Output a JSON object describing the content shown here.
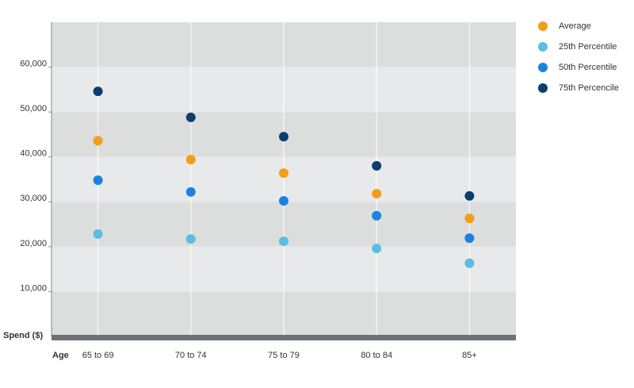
{
  "chart_data": {
    "type": "scatter",
    "y_label": "Spend ($)",
    "x_label": "Age",
    "categories": [
      "65 to 69",
      "70 to 74",
      "75 to 79",
      "80 to 84",
      "85+"
    ],
    "series": [
      {
        "name": "Average",
        "color": "#f59c1a",
        "values": [
          43600,
          39400,
          36400,
          31800,
          26300
        ]
      },
      {
        "name": "25th Percentile",
        "color": "#5bbde3",
        "values": [
          22800,
          21700,
          21200,
          19600,
          16300
        ]
      },
      {
        "name": "50th Percentile",
        "color": "#1a82e2",
        "values": [
          34800,
          32200,
          30200,
          26900,
          21900
        ]
      },
      {
        "name": "75th Percencile",
        "color": "#0b3d6e",
        "values": [
          54600,
          48800,
          44500,
          38000,
          31300
        ]
      }
    ],
    "ylim": [
      0,
      70000
    ],
    "yticks": [
      {
        "value": 10000,
        "label": "10,000"
      },
      {
        "value": 20000,
        "label": "20,000"
      },
      {
        "value": 30000,
        "label": "30,000"
      },
      {
        "value": 40000,
        "label": "40,000"
      },
      {
        "value": 50000,
        "label": "50,000"
      },
      {
        "value": 60000,
        "label": "60,000"
      }
    ],
    "legend": "right"
  }
}
